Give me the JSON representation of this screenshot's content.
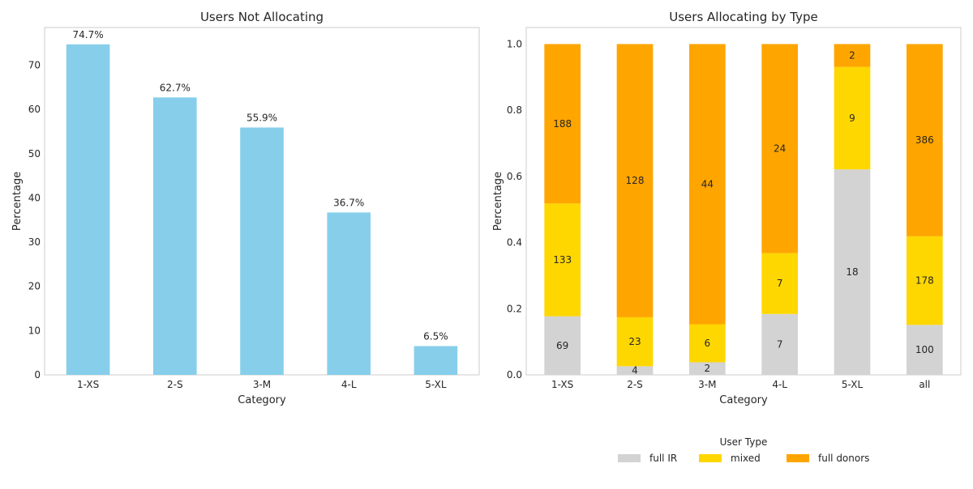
{
  "colors": {
    "bar_not_allocating": "#87ceeb",
    "full_ir": "#d3d3d3",
    "mixed": "#ffd700",
    "full_donors": "#ffa500",
    "axis": "#cccccc"
  },
  "chart_data": [
    {
      "type": "bar",
      "title": "Users Not Allocating",
      "xlabel": "Category",
      "ylabel": "Percentage",
      "categories": [
        "1-XS",
        "2-S",
        "3-M",
        "4-L",
        "5-XL"
      ],
      "values": [
        74.7,
        62.7,
        55.9,
        36.7,
        6.5
      ],
      "data_labels": [
        "74.7%",
        "62.7%",
        "55.9%",
        "36.7%",
        "6.5%"
      ],
      "ylim": [
        0,
        78.5
      ],
      "yticks": [
        0,
        10,
        20,
        30,
        40,
        50,
        60,
        70
      ],
      "grid": false
    },
    {
      "type": "bar",
      "stacked": true,
      "title": "Users Allocating by Type",
      "xlabel": "Category",
      "ylabel": "Percentage",
      "categories": [
        "1-XS",
        "2-S",
        "3-M",
        "4-L",
        "5-XL",
        "all"
      ],
      "series": [
        {
          "name": "full IR",
          "values": [
            0.177,
            0.026,
            0.038,
            0.184,
            0.621,
            0.151
          ],
          "counts": [
            "69",
            "4",
            "2",
            "7",
            "18",
            "100"
          ]
        },
        {
          "name": "mixed",
          "values": [
            0.341,
            0.148,
            0.115,
            0.184,
            0.31,
            0.268
          ],
          "counts": [
            "133",
            "23",
            "6",
            "7",
            "9",
            "178"
          ]
        },
        {
          "name": "full donors",
          "values": [
            0.482,
            0.826,
            0.847,
            0.632,
            0.069,
            0.581
          ],
          "counts": [
            "188",
            "128",
            "44",
            "24",
            "2",
            "386"
          ]
        }
      ],
      "ylim": [
        0,
        1.05
      ],
      "yticks": [
        "0.0",
        "0.2",
        "0.4",
        "0.6",
        "0.8",
        "1.0"
      ],
      "legend": {
        "title": "User Type",
        "placement": "bottom-center"
      },
      "grid": false
    }
  ]
}
